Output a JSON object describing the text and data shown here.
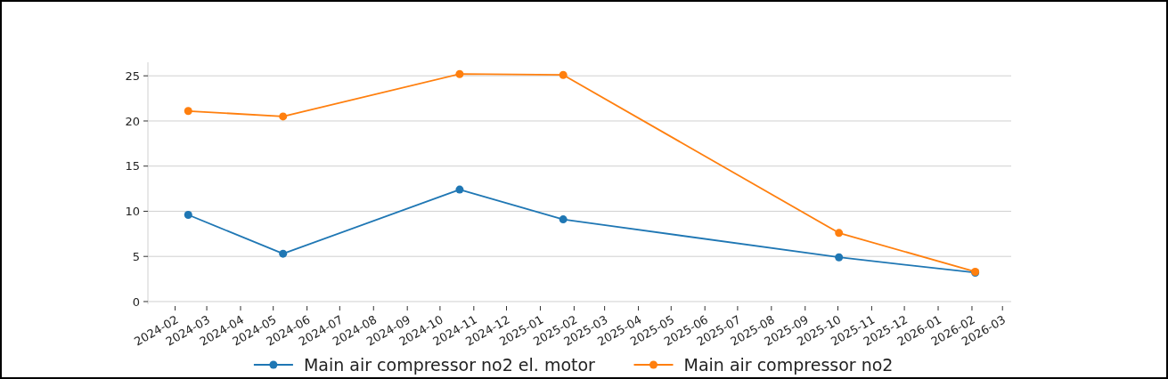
{
  "chart_data": {
    "type": "line",
    "x": [
      "2024-02-13",
      "2024-05-10",
      "2024-10-19",
      "2025-01-22",
      "2025-10-02",
      "2026-02-04"
    ],
    "series": [
      {
        "name": "Main air compressor no2 el. motor",
        "color": "#1f77b4",
        "values": [
          9.6,
          5.3,
          12.4,
          9.1,
          4.9,
          3.2
        ]
      },
      {
        "name": "Main air compressor no2",
        "color": "#ff7f0e",
        "values": [
          21.1,
          20.5,
          25.2,
          25.1,
          7.6,
          3.3
        ]
      }
    ],
    "xlim": [
      "2024-01-07",
      "2026-03-09"
    ],
    "xticks": [
      "2024-02",
      "2024-03",
      "2024-04",
      "2024-05",
      "2024-06",
      "2024-07",
      "2024-08",
      "2024-09",
      "2024-10",
      "2024-11",
      "2024-12",
      "2025-01",
      "2025-02",
      "2025-03",
      "2025-04",
      "2025-05",
      "2025-06",
      "2025-07",
      "2025-08",
      "2025-09",
      "2025-10",
      "2025-11",
      "2025-12",
      "2026-01",
      "2026-02",
      "2026-03"
    ],
    "ylim": [
      -0.3,
      26.5
    ],
    "yticks": [
      0,
      5,
      10,
      15,
      20,
      25
    ],
    "grid": "y",
    "legend": "bottom",
    "marker": "circle",
    "line_style": "solid"
  }
}
